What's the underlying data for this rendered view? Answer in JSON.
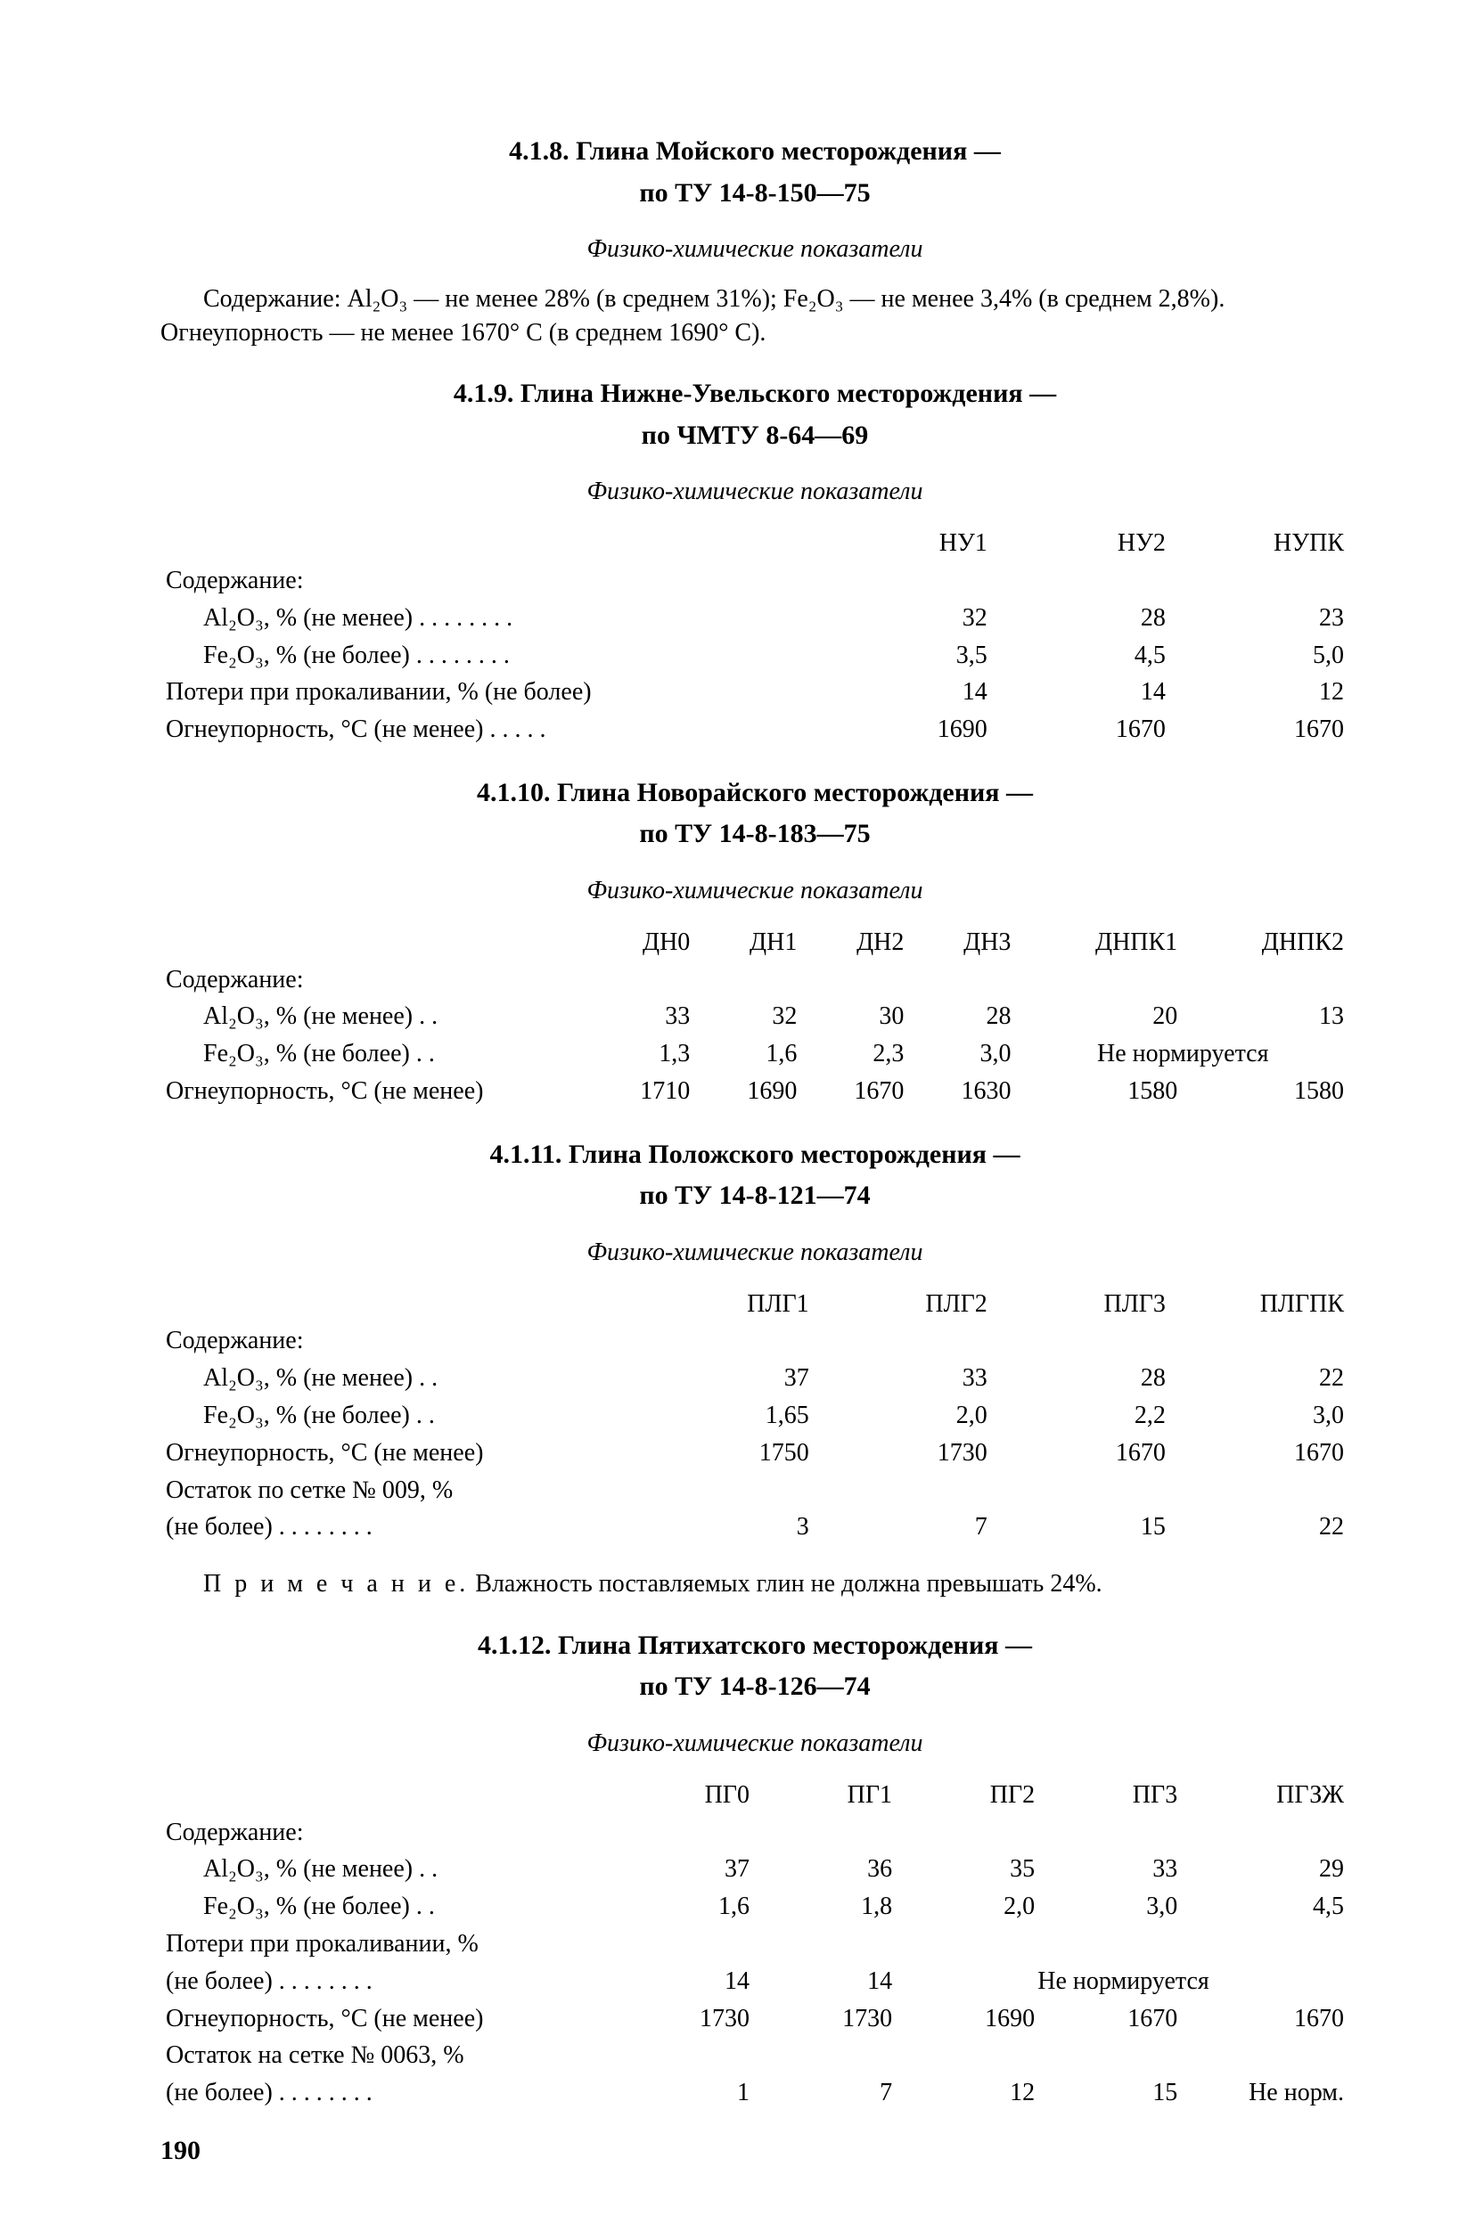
{
  "s418": {
    "title1": "4.1.8. Глина Мойского месторождения —",
    "title2": "по ТУ 14-8-150—75",
    "subtitle": "Физико-химические показатели",
    "paragraph": "Содержание: Al₂O₃ — не менее 28% (в среднем 31%);  Fe₂O₃ — не менее 3,4% (в среднем 2,8%). Огнеупорность — не менее 1670° С (в среднем 1690° С)."
  },
  "s419": {
    "title1": "4.1.9. Глина Нижне-Увельского месторождения —",
    "title2": "по ЧМТУ 8-64—69",
    "subtitle": "Физико-химические показатели",
    "cols": [
      "НУ1",
      "НУ2",
      "НУПК"
    ],
    "rows": [
      {
        "label": "Содержание:",
        "indent": false,
        "vals": [
          "",
          "",
          ""
        ]
      },
      {
        "label": "Al₂O₃, % (не менее)   .  .  .  .  .  .  .  .",
        "indent": true,
        "vals": [
          "32",
          "28",
          "23"
        ]
      },
      {
        "label": "Fe₂O₃, % (не более)   .  .  .  .  .  .  .  .",
        "indent": true,
        "vals": [
          "3,5",
          "4,5",
          "5,0"
        ]
      },
      {
        "label": "Потери при прокаливании, % (не более)",
        "indent": false,
        "vals": [
          "14",
          "14",
          "12"
        ]
      },
      {
        "label": "Огнеупорность, °С (не менее)    .  .  .  .  .",
        "indent": false,
        "vals": [
          "1690",
          "1670",
          "1670"
        ]
      }
    ]
  },
  "s4110": {
    "title1": "4.1.10. Глина Новорайского месторождения —",
    "title2": "по ТУ 14-8-183—75",
    "subtitle": "Физико-химические показатели",
    "cols": [
      "ДН0",
      "ДН1",
      "ДН2",
      "ДН3",
      "ДНПК1",
      "ДНПК2"
    ],
    "rows": [
      {
        "label": "Содержание:",
        "indent": false,
        "vals": [
          "",
          "",
          "",
          "",
          "",
          ""
        ]
      },
      {
        "label": "Al₂O₃, % (не менее)  .  .",
        "indent": true,
        "vals": [
          "33",
          "32",
          "30",
          "28",
          "20",
          "13"
        ]
      },
      {
        "label": "Fe₂O₃, % (не более)  .  .",
        "indent": true,
        "vals": [
          "1,3",
          "1,6",
          "2,3",
          "3,0",
          "Не нормируется",
          ""
        ],
        "span": {
          "from": 4,
          "span": 2
        }
      },
      {
        "label": "Огнеупорность, °С (не менее)",
        "indent": false,
        "vals": [
          "1710",
          "1690",
          "1670",
          "1630",
          "1580",
          "1580"
        ]
      }
    ]
  },
  "s4111": {
    "title1": "4.1.11. Глина Положского месторождения —",
    "title2": "по ТУ 14-8-121—74",
    "subtitle": "Физико-химические показатели",
    "cols": [
      "ПЛГ1",
      "ПЛГ2",
      "ПЛГ3",
      "ПЛГПК"
    ],
    "rows": [
      {
        "label": "Содержание:",
        "indent": false,
        "vals": [
          "",
          "",
          "",
          ""
        ]
      },
      {
        "label": "Al₂O₃, % (не менее)   .  .",
        "indent": true,
        "vals": [
          "37",
          "33",
          "28",
          "22"
        ]
      },
      {
        "label": "Fe₂O₃, % (не более)   .  .",
        "indent": true,
        "vals": [
          "1,65",
          "2,0",
          "2,2",
          "3,0"
        ]
      },
      {
        "label": "Огнеупорность, °С (не менее)",
        "indent": false,
        "vals": [
          "1750",
          "1730",
          "1670",
          "1670"
        ]
      },
      {
        "label": "Остаток по сетке № 009, %",
        "indent": false,
        "vals": [
          "",
          "",
          "",
          ""
        ]
      },
      {
        "label": "(не более)    .  .  .  .  .  .  .  .",
        "indent": false,
        "vals": [
          "3",
          "7",
          "15",
          "22"
        ]
      }
    ],
    "note_prefix": "П р и м е ч а н и е.",
    "note_rest": " Влажность поставляемых глин не должна превышать 24%."
  },
  "s4112": {
    "title1": "4.1.12. Глина Пятихатского месторождения —",
    "title2": "по ТУ 14-8-126—74",
    "subtitle": "Физико-химические показатели",
    "cols": [
      "ПГ0",
      "ПГ1",
      "ПГ2",
      "ПГ3",
      "ПГЗЖ"
    ],
    "rows": [
      {
        "label": "Содержание:",
        "indent": false,
        "vals": [
          "",
          "",
          "",
          "",
          ""
        ]
      },
      {
        "label": "Al₂O₃, % (не менее)   .  .",
        "indent": true,
        "vals": [
          "37",
          "36",
          "35",
          "33",
          "29"
        ]
      },
      {
        "label": "Fe₂O₃, % (не более)   .  .",
        "indent": true,
        "vals": [
          "1,6",
          "1,8",
          "2,0",
          "3,0",
          "4,5"
        ]
      },
      {
        "label": "Потери при прокаливании, %",
        "indent": false,
        "vals": [
          "",
          "",
          "",
          "",
          ""
        ]
      },
      {
        "label": "(не более)    .  .  .  .  .  .  .  .",
        "indent": false,
        "vals": [
          "14",
          "14",
          "Не нормируется",
          "",
          ""
        ],
        "span": {
          "from": 2,
          "span": 3
        }
      },
      {
        "label": "Огнеупорность, °С (не менее)",
        "indent": false,
        "vals": [
          "1730",
          "1730",
          "1690",
          "1670",
          "1670"
        ]
      },
      {
        "label": "Остаток на сетке № 0063, %",
        "indent": false,
        "vals": [
          "",
          "",
          "",
          "",
          ""
        ]
      },
      {
        "label": "(не более)    .  .  .  .  .  .  .  .",
        "indent": false,
        "vals": [
          "1",
          "7",
          "12",
          "15",
          "Не норм."
        ]
      }
    ]
  },
  "pagenum": "190"
}
